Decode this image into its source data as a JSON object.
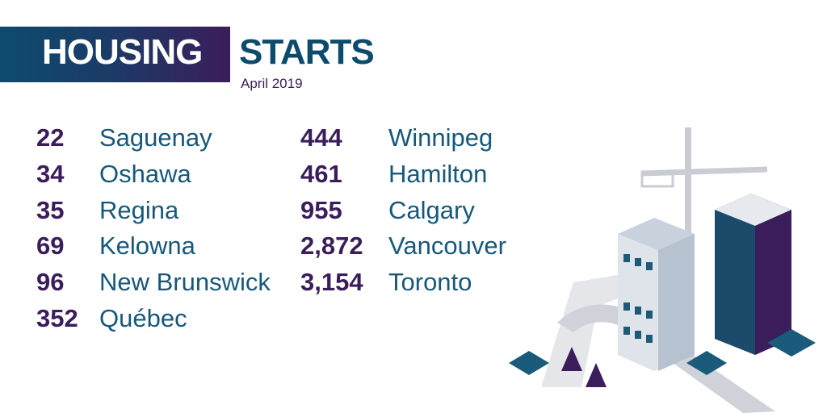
{
  "header": {
    "title_left": "HOUSING",
    "title_right": "STARTS",
    "subtitle": "April 2019"
  },
  "columns": [
    [
      {
        "number": "22",
        "city": "Saguenay"
      },
      {
        "number": "34",
        "city": "Oshawa"
      },
      {
        "number": "35",
        "city": "Regina"
      },
      {
        "number": "69",
        "city": "Kelowna"
      },
      {
        "number": "96",
        "city": "New Brunswick"
      },
      {
        "number": "352",
        "city": "Québec"
      }
    ],
    [
      {
        "number": "444",
        "city": "Winnipeg"
      },
      {
        "number": "461",
        "city": "Hamilton"
      },
      {
        "number": "955",
        "city": "Calgary"
      },
      {
        "number": "2,872",
        "city": "Vancouver"
      },
      {
        "number": "3,154",
        "city": "Toronto"
      }
    ]
  ]
}
